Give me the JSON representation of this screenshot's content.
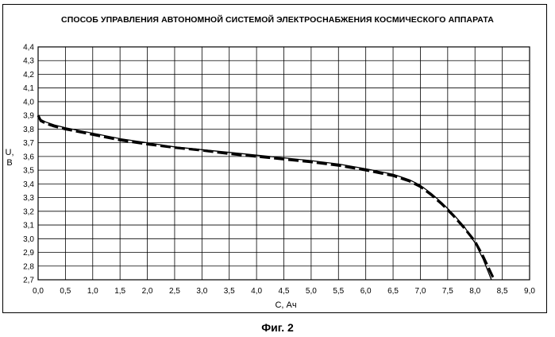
{
  "chart_data": {
    "type": "line",
    "title": "СПОСОБ УПРАВЛЕНИЯ АВТОНОМНОЙ СИСТЕМОЙ ЭЛЕКТРОСНАБЖЕНИЯ КОСМИЧЕСКОГО АППАРАТА",
    "xlabel": "С, Ач",
    "ylabel_line1": "U,",
    "ylabel_line2": "В",
    "xlim": [
      0,
      9
    ],
    "ylim": [
      2.7,
      4.4
    ],
    "grid": true,
    "x_ticks": [
      "0,0",
      "0,5",
      "1,0",
      "1,5",
      "2,0",
      "2,5",
      "3,0",
      "3,5",
      "4,0",
      "4,5",
      "5,0",
      "5,5",
      "6,0",
      "6,5",
      "7,0",
      "7,5",
      "8,0",
      "8,5",
      "9,0"
    ],
    "y_ticks": [
      "2,7",
      "2,8",
      "2,9",
      "3,0",
      "3,1",
      "3,2",
      "3,3",
      "3,4",
      "3,5",
      "3,6",
      "3,7",
      "3,8",
      "3,9",
      "4,0",
      "4,1",
      "4,2",
      "4,3",
      "4,4"
    ],
    "series": [
      {
        "style": "solid",
        "x": [
          0,
          0.05,
          0.15,
          0.3,
          0.5,
          1.0,
          1.5,
          2.0,
          2.5,
          3.0,
          3.5,
          4.0,
          4.5,
          5.0,
          5.5,
          6.0,
          6.5,
          6.8,
          7.0,
          7.2,
          7.4,
          7.6,
          7.8,
          8.0,
          8.15,
          8.3
        ],
        "y": [
          3.9,
          3.87,
          3.85,
          3.83,
          3.81,
          3.77,
          3.73,
          3.7,
          3.67,
          3.65,
          3.63,
          3.61,
          3.59,
          3.57,
          3.545,
          3.51,
          3.47,
          3.43,
          3.39,
          3.33,
          3.26,
          3.18,
          3.09,
          2.97,
          2.85,
          2.7
        ]
      },
      {
        "style": "dashed",
        "x": [
          0,
          0.05,
          0.15,
          0.3,
          0.5,
          1.0,
          1.5,
          2.0,
          2.5,
          3.0,
          3.5,
          4.0,
          4.5,
          5.0,
          5.5,
          6.0,
          6.5,
          6.8,
          7.0,
          7.2,
          7.4,
          7.6,
          7.8,
          8.0,
          8.15,
          8.35
        ],
        "y": [
          3.9,
          3.86,
          3.84,
          3.82,
          3.8,
          3.76,
          3.72,
          3.69,
          3.665,
          3.645,
          3.62,
          3.6,
          3.58,
          3.56,
          3.535,
          3.5,
          3.46,
          3.42,
          3.38,
          3.32,
          3.25,
          3.17,
          3.08,
          2.98,
          2.87,
          2.7
        ]
      }
    ]
  },
  "caption": "Фиг. 2",
  "colors": {
    "line": "#000000",
    "grid": "#000000"
  }
}
